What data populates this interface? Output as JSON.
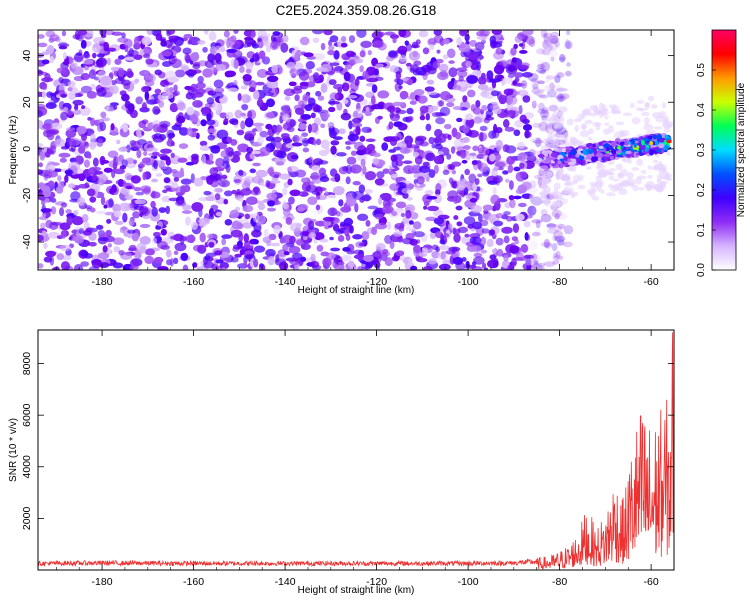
{
  "figure": {
    "title": "C2E5.2024.359.08.26.G18"
  },
  "chart_data": [
    {
      "type": "heatmap",
      "xlabel": "Height of straight line (km)",
      "ylabel": "Frequency (Hz)",
      "xlim": [
        -194,
        -55
      ],
      "ylim": [
        -52,
        51
      ],
      "x_ticks": [
        -180,
        -160,
        -140,
        -120,
        -100,
        -80,
        -60
      ],
      "y_ticks": [
        -40,
        -20,
        0,
        20,
        40
      ],
      "colorbar": {
        "label": "Normalized spectral amplitude",
        "range": [
          0,
          0.6
        ],
        "ticks": [
          0.0,
          0.1,
          0.2,
          0.3,
          0.4,
          0.5
        ],
        "colormap": [
          "#ffffff",
          "#d6b3ff",
          "#8f2cf5",
          "#3f00ff",
          "#0050ff",
          "#00ddff",
          "#00ff55",
          "#ccff00",
          "#ff9900",
          "#ff0000",
          "#ff0066"
        ]
      },
      "regions": [
        {
          "description": "diffuse noise",
          "x_range": [
            -194,
            -82
          ],
          "y_range": [
            -52,
            51
          ],
          "amplitude": 0.05
        },
        {
          "description": "signal band",
          "x_range": [
            -84,
            -56
          ],
          "frequency_start": -5,
          "frequency_end": 3,
          "half_width": 3,
          "amplitude_max": 0.55
        }
      ],
      "grid": false
    },
    {
      "type": "line",
      "xlabel": "Height of straight line (km)",
      "ylabel": "SNR (10 * v/v)",
      "xlim": [
        -194,
        -55
      ],
      "ylim": [
        0,
        9300
      ],
      "x_ticks": [
        -180,
        -160,
        -140,
        -120,
        -100,
        -80,
        -60
      ],
      "y_ticks": [
        2000,
        4000,
        6000,
        8000
      ],
      "color": "#ee3030",
      "series": [
        {
          "x": [
            -194,
            -180,
            -160,
            -140,
            -120,
            -100,
            -90,
            -85,
            -82,
            -80,
            -78,
            -76,
            -74,
            -72,
            -70,
            -68,
            -66,
            -64,
            -62,
            -60,
            -58,
            -56,
            -55
          ],
          "y": [
            300,
            320,
            300,
            300,
            300,
            300,
            320,
            380,
            450,
            600,
            800,
            1200,
            2000,
            1300,
            1800,
            3000,
            2200,
            4200,
            5200,
            4500,
            5000,
            5500,
            9200
          ]
        }
      ],
      "grid": false
    }
  ]
}
